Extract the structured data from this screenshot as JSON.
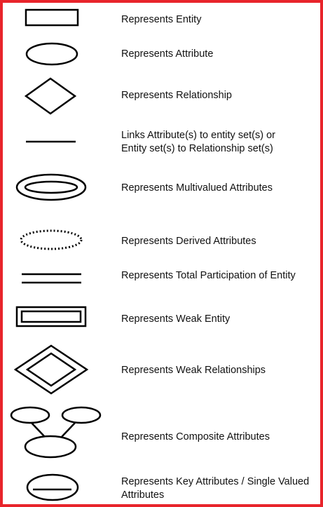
{
  "colors": {
    "border": "#e8242b",
    "ink": "#000000",
    "text": "#111111",
    "background": "#ffffff"
  },
  "legend": [
    {
      "symbol": "rectangle-icon",
      "label": "Represents Entity"
    },
    {
      "symbol": "ellipse-icon",
      "label": "Represents Attribute"
    },
    {
      "symbol": "diamond-icon",
      "label": "Represents Relationship"
    },
    {
      "symbol": "line-icon",
      "label": "Links Attribute(s) to entity set(s) or",
      "label2": "Entity set(s) to Relationship set(s)"
    },
    {
      "symbol": "double-ellipse-icon",
      "label": "Represents Multivalued Attributes"
    },
    {
      "symbol": "dotted-ellipse-icon",
      "label": "Represents Derived Attributes"
    },
    {
      "symbol": "double-line-icon",
      "label": "Represents Total Participation of Entity"
    },
    {
      "symbol": "double-rectangle-icon",
      "label": "Represents Weak Entity"
    },
    {
      "symbol": "double-diamond-icon",
      "label": "Represents Weak Relationships"
    },
    {
      "symbol": "composite-attribute-icon",
      "label": "Represents Composite Attributes"
    },
    {
      "symbol": "key-attribute-icon",
      "label": "Represents Key Attributes / Single Valued",
      "label2": "Attributes"
    }
  ]
}
